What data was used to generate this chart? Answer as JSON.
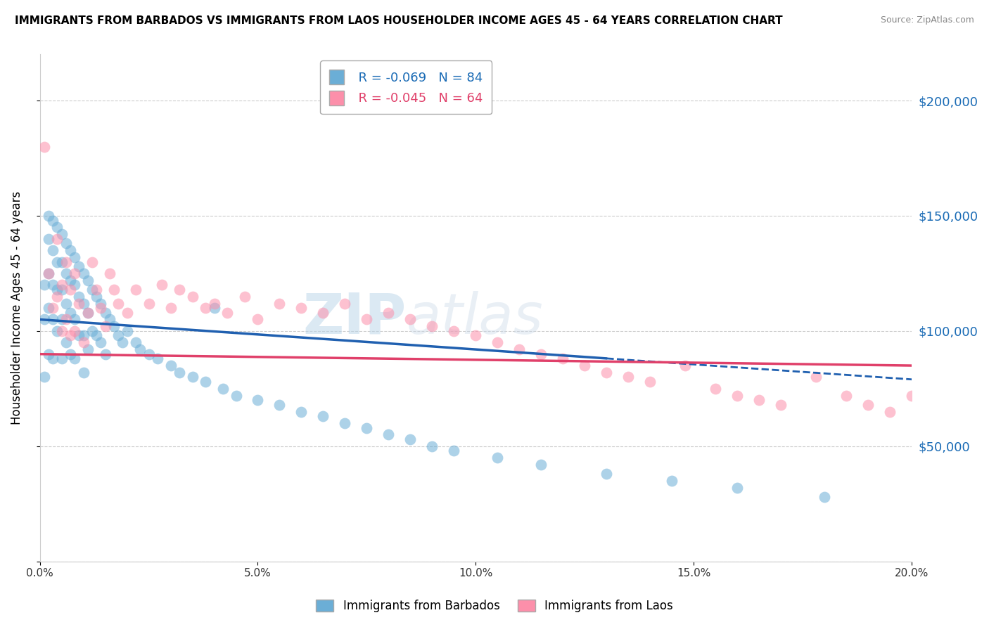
{
  "title": "IMMIGRANTS FROM BARBADOS VS IMMIGRANTS FROM LAOS HOUSEHOLDER INCOME AGES 45 - 64 YEARS CORRELATION CHART",
  "source": "Source: ZipAtlas.com",
  "ylabel": "Householder Income Ages 45 - 64 years",
  "legend_blue_r": "R = -0.069",
  "legend_blue_n": "N = 84",
  "legend_pink_r": "R = -0.045",
  "legend_pink_n": "N = 64",
  "legend_label_blue": "Immigrants from Barbados",
  "legend_label_pink": "Immigrants from Laos",
  "xlim": [
    0,
    0.2
  ],
  "ylim": [
    0,
    220000
  ],
  "yticks": [
    0,
    50000,
    100000,
    150000,
    200000
  ],
  "ytick_labels": [
    "",
    "$50,000",
    "$100,000",
    "$150,000",
    "$200,000"
  ],
  "xticks": [
    0.0,
    0.05,
    0.1,
    0.15,
    0.2
  ],
  "xtick_labels": [
    "0.0%",
    "5.0%",
    "10.0%",
    "15.0%",
    "20.0%"
  ],
  "blue_color": "#6baed6",
  "pink_color": "#fc8faa",
  "blue_line_color": "#2060b0",
  "pink_line_color": "#e0406a",
  "watermark1": "ZIP",
  "watermark2": "atlas",
  "blue_x": [
    0.001,
    0.001,
    0.001,
    0.002,
    0.002,
    0.002,
    0.002,
    0.002,
    0.003,
    0.003,
    0.003,
    0.003,
    0.003,
    0.004,
    0.004,
    0.004,
    0.004,
    0.005,
    0.005,
    0.005,
    0.005,
    0.005,
    0.006,
    0.006,
    0.006,
    0.006,
    0.007,
    0.007,
    0.007,
    0.007,
    0.008,
    0.008,
    0.008,
    0.008,
    0.009,
    0.009,
    0.009,
    0.01,
    0.01,
    0.01,
    0.01,
    0.011,
    0.011,
    0.011,
    0.012,
    0.012,
    0.013,
    0.013,
    0.014,
    0.014,
    0.015,
    0.015,
    0.016,
    0.017,
    0.018,
    0.019,
    0.02,
    0.022,
    0.023,
    0.025,
    0.027,
    0.03,
    0.032,
    0.035,
    0.038,
    0.04,
    0.042,
    0.045,
    0.05,
    0.055,
    0.06,
    0.065,
    0.07,
    0.075,
    0.08,
    0.085,
    0.09,
    0.095,
    0.105,
    0.115,
    0.13,
    0.145,
    0.16,
    0.18
  ],
  "blue_y": [
    120000,
    105000,
    80000,
    150000,
    140000,
    125000,
    110000,
    90000,
    148000,
    135000,
    120000,
    105000,
    88000,
    145000,
    130000,
    118000,
    100000,
    142000,
    130000,
    118000,
    105000,
    88000,
    138000,
    125000,
    112000,
    95000,
    135000,
    122000,
    108000,
    90000,
    132000,
    120000,
    105000,
    88000,
    128000,
    115000,
    98000,
    125000,
    112000,
    98000,
    82000,
    122000,
    108000,
    92000,
    118000,
    100000,
    115000,
    98000,
    112000,
    95000,
    108000,
    90000,
    105000,
    102000,
    98000,
    95000,
    100000,
    95000,
    92000,
    90000,
    88000,
    85000,
    82000,
    80000,
    78000,
    110000,
    75000,
    72000,
    70000,
    68000,
    65000,
    63000,
    60000,
    58000,
    55000,
    53000,
    50000,
    48000,
    45000,
    42000,
    38000,
    35000,
    32000,
    28000
  ],
  "pink_x": [
    0.001,
    0.002,
    0.003,
    0.004,
    0.004,
    0.005,
    0.005,
    0.006,
    0.006,
    0.007,
    0.007,
    0.008,
    0.008,
    0.009,
    0.01,
    0.011,
    0.012,
    0.013,
    0.014,
    0.015,
    0.016,
    0.017,
    0.018,
    0.02,
    0.022,
    0.025,
    0.028,
    0.03,
    0.032,
    0.035,
    0.038,
    0.04,
    0.043,
    0.047,
    0.05,
    0.055,
    0.06,
    0.065,
    0.07,
    0.075,
    0.08,
    0.085,
    0.09,
    0.095,
    0.1,
    0.105,
    0.11,
    0.115,
    0.12,
    0.125,
    0.13,
    0.135,
    0.14,
    0.148,
    0.155,
    0.16,
    0.165,
    0.17,
    0.178,
    0.185,
    0.19,
    0.195,
    0.2,
    0.21
  ],
  "pink_y": [
    180000,
    125000,
    110000,
    140000,
    115000,
    120000,
    100000,
    130000,
    105000,
    118000,
    98000,
    125000,
    100000,
    112000,
    95000,
    108000,
    130000,
    118000,
    110000,
    102000,
    125000,
    118000,
    112000,
    108000,
    118000,
    112000,
    120000,
    110000,
    118000,
    115000,
    110000,
    112000,
    108000,
    115000,
    105000,
    112000,
    110000,
    108000,
    112000,
    105000,
    108000,
    105000,
    102000,
    100000,
    98000,
    95000,
    92000,
    90000,
    88000,
    85000,
    82000,
    80000,
    78000,
    85000,
    75000,
    72000,
    70000,
    68000,
    80000,
    72000,
    68000,
    65000,
    72000,
    60000
  ]
}
